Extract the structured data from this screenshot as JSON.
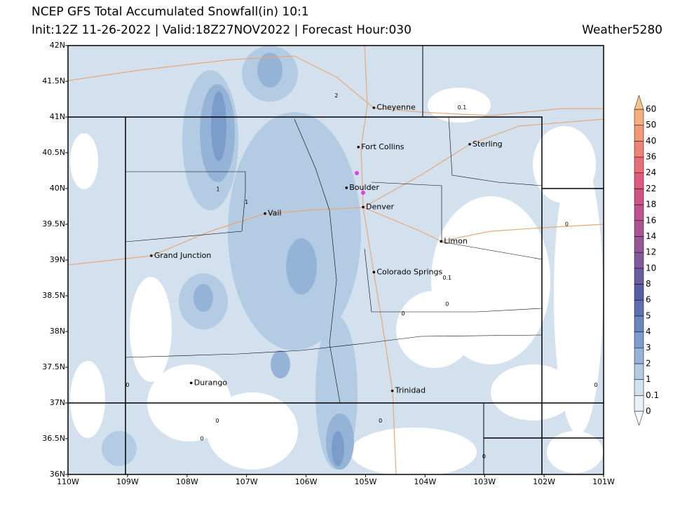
{
  "header": {
    "title": "NCEP GFS Total Accumulated Snowfall(in) 10:1",
    "subtitle": "Init:12Z 11-26-2022 | Valid:18Z27NOV2022 | Forecast Hour:030",
    "brand": "Weather5280"
  },
  "map": {
    "lonlim": [
      -110,
      -101
    ],
    "latlim": [
      36,
      42
    ],
    "lat_ticks": [
      {
        "value": 42,
        "label": "42N"
      },
      {
        "value": 41.5,
        "label": "41.5N"
      },
      {
        "value": 41,
        "label": "41N"
      },
      {
        "value": 40.5,
        "label": "40.5N"
      },
      {
        "value": 40,
        "label": "40N"
      },
      {
        "value": 39.5,
        "label": "39.5N"
      },
      {
        "value": 39,
        "label": "39N"
      },
      {
        "value": 38.5,
        "label": "38.5N"
      },
      {
        "value": 38,
        "label": "38N"
      },
      {
        "value": 37.5,
        "label": "37.5N"
      },
      {
        "value": 37,
        "label": "37N"
      },
      {
        "value": 36.5,
        "label": "36.5N"
      },
      {
        "value": 36,
        "label": "36N"
      }
    ],
    "lon_ticks": [
      {
        "value": -110,
        "label": "110W"
      },
      {
        "value": -109,
        "label": "109W"
      },
      {
        "value": -108,
        "label": "108W"
      },
      {
        "value": -107,
        "label": "107W"
      },
      {
        "value": -106,
        "label": "106W"
      },
      {
        "value": -105,
        "label": "105W"
      },
      {
        "value": -104,
        "label": "104W"
      },
      {
        "value": -103,
        "label": "103W"
      },
      {
        "value": -102,
        "label": "102W"
      },
      {
        "value": -101,
        "label": "101W"
      }
    ],
    "cities": [
      {
        "name": "Cheyenne",
        "lon": -104.86,
        "lat": 41.13
      },
      {
        "name": "Fort Collins",
        "lon": -105.12,
        "lat": 40.58
      },
      {
        "name": "Sterling",
        "lon": -103.25,
        "lat": 40.62
      },
      {
        "name": "Boulder",
        "lon": -105.32,
        "lat": 40.01
      },
      {
        "name": "Denver",
        "lon": -105.04,
        "lat": 39.74
      },
      {
        "name": "Vail",
        "lon": -106.69,
        "lat": 39.65
      },
      {
        "name": "Limon",
        "lon": -103.73,
        "lat": 39.26
      },
      {
        "name": "Grand Junction",
        "lon": -108.6,
        "lat": 39.06
      },
      {
        "name": "Colorado Springs",
        "lon": -104.86,
        "lat": 38.83
      },
      {
        "name": "Durango",
        "lon": -107.93,
        "lat": 37.28
      },
      {
        "name": "Trinidad",
        "lon": -104.55,
        "lat": 37.17
      }
    ],
    "contour_labels": [
      {
        "text": "2",
        "lon": -105.49,
        "lat": 41.3
      },
      {
        "text": "0.1",
        "lon": -103.38,
        "lat": 41.13
      },
      {
        "text": "1",
        "lon": -107.48,
        "lat": 39.99
      },
      {
        "text": "1",
        "lon": -107.0,
        "lat": 39.81
      },
      {
        "text": "0",
        "lon": -101.62,
        "lat": 39.5
      },
      {
        "text": "0.1",
        "lon": -103.63,
        "lat": 38.75
      },
      {
        "text": "0",
        "lon": -103.63,
        "lat": 38.38
      },
      {
        "text": "0",
        "lon": -104.37,
        "lat": 38.25
      },
      {
        "text": "0",
        "lon": -109.0,
        "lat": 37.25
      },
      {
        "text": "0",
        "lon": -101.13,
        "lat": 37.25
      },
      {
        "text": "0",
        "lon": -107.49,
        "lat": 36.75
      },
      {
        "text": "0",
        "lon": -104.75,
        "lat": 36.75
      },
      {
        "text": "0",
        "lon": -107.75,
        "lat": 36.5
      },
      {
        "text": "0",
        "lon": -103.01,
        "lat": 36.25
      }
    ]
  },
  "colorbar": {
    "levels": [
      0,
      0.1,
      1,
      2,
      3,
      4,
      5,
      6,
      8,
      10,
      12,
      14,
      16,
      18,
      22,
      24,
      36,
      40,
      50,
      60
    ],
    "colors": [
      "#eaf1f8",
      "#d3e1ef",
      "#b3cbe3",
      "#95b3d7",
      "#7c9ccb",
      "#6a86bf",
      "#5d71b2",
      "#585fa3",
      "#6a5d9f",
      "#825a9c",
      "#975797",
      "#ab5492",
      "#be528c",
      "#d05286",
      "#df5a7e",
      "#e86e77",
      "#ee8474",
      "#f29a78",
      "#f5af7e",
      "#f7c38a"
    ]
  }
}
